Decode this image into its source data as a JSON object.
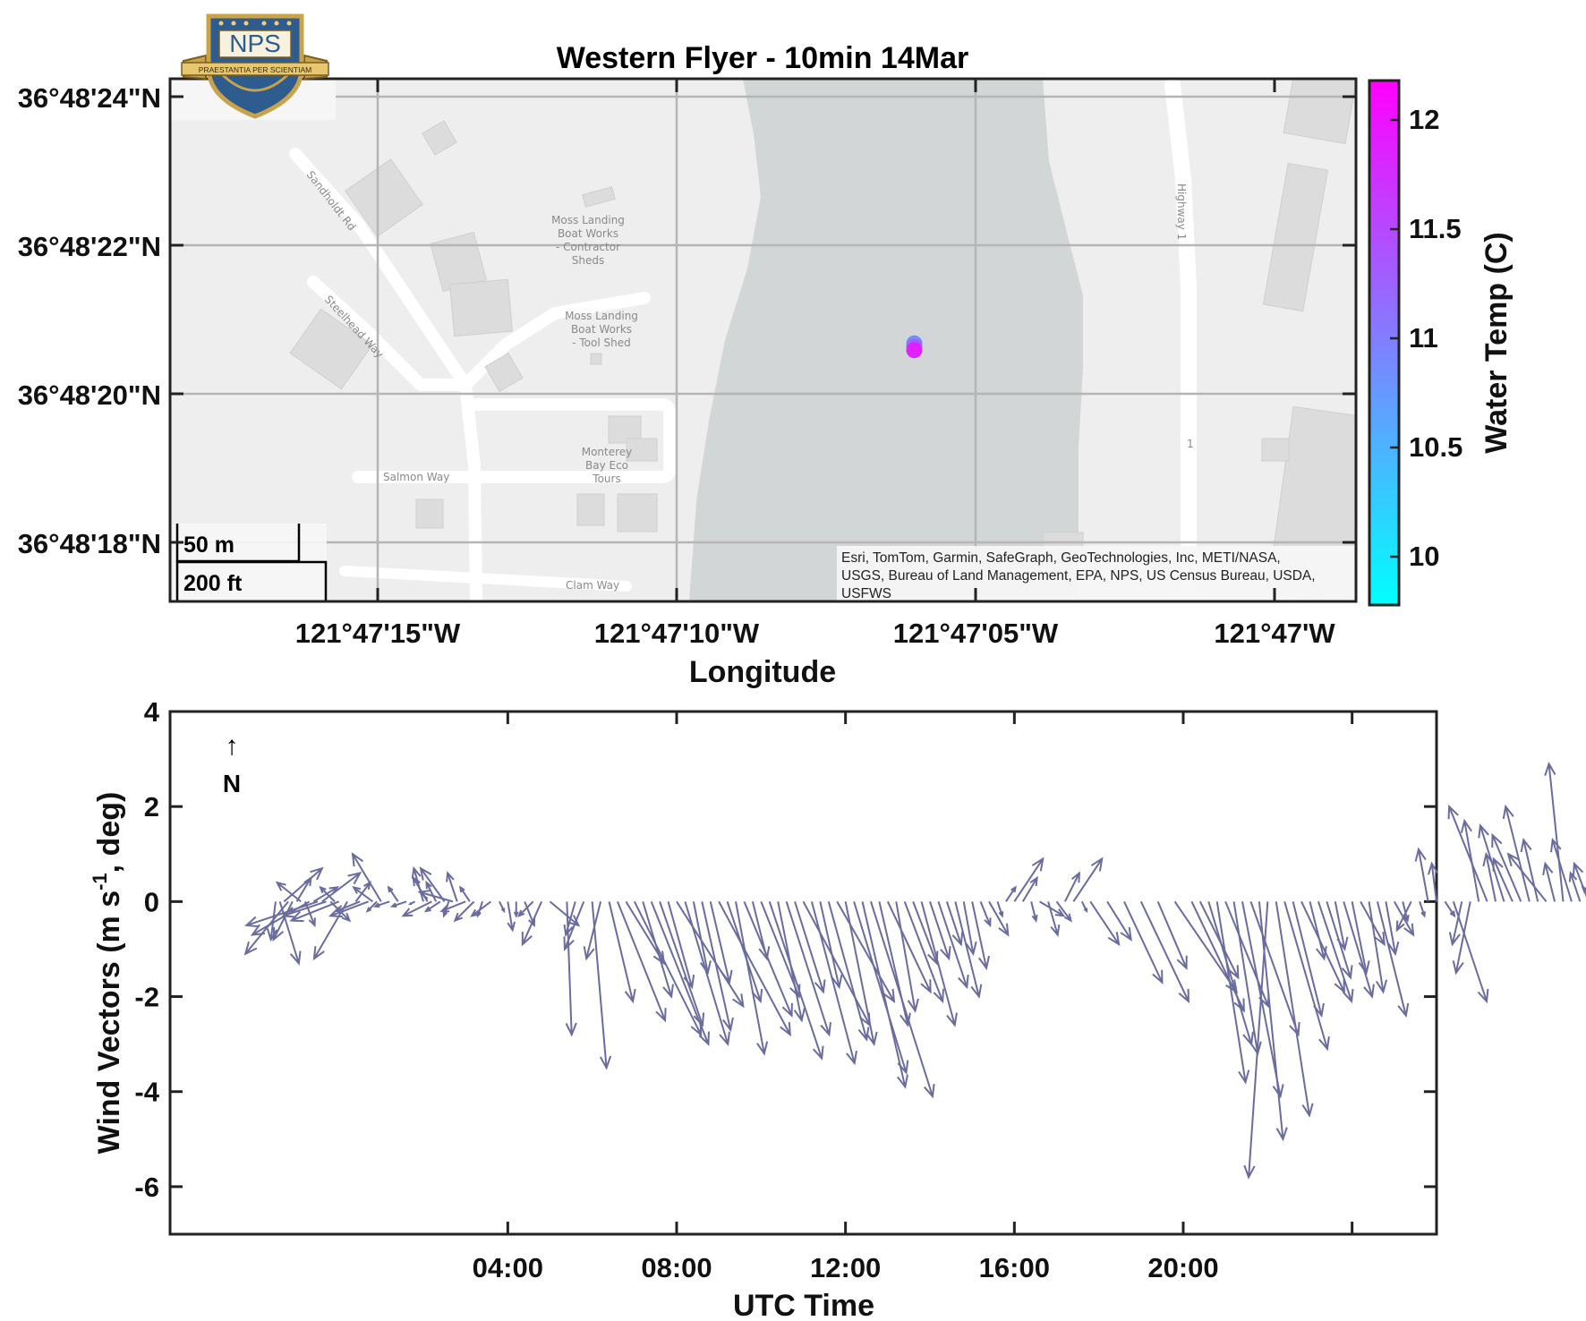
{
  "logo": {
    "text": "NPS",
    "motto": "PRAESTANTIA PER SCIENTIAM"
  },
  "map": {
    "title": "Western Flyer - 10min 14Mar",
    "xlabel": "Longitude",
    "lon_ticks": [
      "121°47'15\"W",
      "121°47'10\"W",
      "121°47'05\"W",
      "121°47'W"
    ],
    "lat_ticks": [
      "36°48'24\"N",
      "36°48'22\"N",
      "36°48'20\"N",
      "36°48'18\"N"
    ],
    "scale_bar": {
      "metric": "50 m",
      "imperial": "200 ft"
    },
    "attribution": "Esri, TomTom, Garmin, SafeGraph, GeoTechnologies, Inc, METI/NASA, USGS, Bureau of Land Management, EPA, NPS, US Census Bureau, USDA, USFWS",
    "labels": {
      "sandholdt": "Sandholdt Rd",
      "steelhead": "Steelhead Way",
      "salmon": "Salmon Way",
      "clam": "Clam Way",
      "highway": "Highway 1",
      "highway_shield": "1",
      "boatworks_1": "Moss Landing",
      "boatworks_2": "Boat Works",
      "boatworks_3": "- Contractor",
      "boatworks_4": "Sheds",
      "toolshed_1": "Moss Landing",
      "toolshed_2": "Boat Works",
      "toolshed_3": "- Tool Shed",
      "ecotours_1": "Monterey",
      "ecotours_2": "Bay Eco",
      "ecotours_3": "Tours"
    },
    "water_color": "#d3d6d6",
    "land_color": "#eeeeee"
  },
  "colorbar": {
    "label": "Water Temp (C)",
    "ticks": [
      "10",
      "10.5",
      "11",
      "11.5",
      "12"
    ],
    "range": [
      9.8,
      12.2
    ],
    "color_low": "#00ffff",
    "color_high": "#ff00ff"
  },
  "wind": {
    "xlabel": "UTC Time",
    "ylabel_main": "Wind Vectors (m s",
    "ylabel_sup": "-1",
    "ylabel_tail": ", deg)",
    "north_arrow": "↑",
    "north_label": "N",
    "x_ticks": [
      "04:00",
      "08:00",
      "12:00",
      "16:00",
      "20:00"
    ],
    "y_ticks": [
      "-6",
      "-4",
      "-2",
      "0",
      "2",
      "4"
    ],
    "arrow_color": "#6a6c9e"
  },
  "chart_data": [
    {
      "type": "scatter",
      "title": "Western Flyer - 10min 14Mar",
      "xlabel": "Longitude",
      "ylabel": "",
      "x_range_sec": [
        -20.9,
        -1.3
      ],
      "y_range_sec": [
        16.9,
        24.7
      ],
      "points": [
        {
          "lon_sec": -8.6,
          "lat_sec": 20.75,
          "temp": 10.9
        },
        {
          "lon_sec": -8.6,
          "lat_sec": 20.7,
          "temp": 11.3
        },
        {
          "lon_sec": -8.6,
          "lat_sec": 20.65,
          "temp": 11.9
        }
      ]
    },
    {
      "type": "quiver",
      "xlabel": "UTC Time",
      "ylabel": "Wind Vectors (m s-1, deg)",
      "xlim_hours": [
        0,
        30
      ],
      "ylim": [
        -7,
        4
      ],
      "grid": false,
      "vectors": [
        {
          "t": 2.5,
          "u": -0.1,
          "v": -0.8
        },
        {
          "t": 2.6,
          "u": 0.4,
          "v": -1.3
        },
        {
          "t": 2.7,
          "u": 0.8,
          "v": 0.7
        },
        {
          "t": 2.8,
          "u": -0.9,
          "v": -1.1
        },
        {
          "t": 2.9,
          "u": -0.4,
          "v": -0.8
        },
        {
          "t": 3.0,
          "u": 0.3,
          "v": 0.5
        },
        {
          "t": 3.1,
          "u": -0.5,
          "v": 0.4
        },
        {
          "t": 3.2,
          "u": 0.2,
          "v": -0.5
        },
        {
          "t": 3.3,
          "u": -1.2,
          "v": -0.7
        },
        {
          "t": 3.4,
          "u": 0.5,
          "v": 0.3
        },
        {
          "t": 3.5,
          "u": -1.5,
          "v": -0.5
        },
        {
          "t": 3.6,
          "u": 0.8,
          "v": 0.6
        },
        {
          "t": 3.7,
          "u": -0.9,
          "v": -0.3
        },
        {
          "t": 3.8,
          "u": 0.4,
          "v": -0.4
        },
        {
          "t": 3.9,
          "u": -0.3,
          "v": 0.3
        },
        {
          "t": 4.0,
          "u": -1.0,
          "v": -0.4
        },
        {
          "t": 4.2,
          "u": -0.7,
          "v": -1.2
        },
        {
          "t": 4.4,
          "u": 0.3,
          "v": 0.4
        },
        {
          "t": 4.5,
          "u": -0.5,
          "v": -0.2
        },
        {
          "t": 4.7,
          "u": -0.8,
          "v": -0.3
        },
        {
          "t": 4.8,
          "u": -0.4,
          "v": 0.3
        },
        {
          "t": 4.9,
          "u": -0.2,
          "v": -0.2
        },
        {
          "t": 5.0,
          "u": -0.6,
          "v": 1.0
        },
        {
          "t": 5.2,
          "u": -0.3,
          "v": -0.1
        },
        {
          "t": 5.4,
          "u": -0.2,
          "v": 0.3
        },
        {
          "t": 5.6,
          "u": -0.3,
          "v": -0.1
        },
        {
          "t": 5.8,
          "u": -0.1,
          "v": -0.05
        },
        {
          "t": 6.0,
          "u": -0.2,
          "v": 0.7
        },
        {
          "t": 6.1,
          "u": -0.3,
          "v": 0.5
        },
        {
          "t": 6.2,
          "u": -0.6,
          "v": -0.3
        },
        {
          "t": 6.3,
          "u": -0.2,
          "v": 0.4
        },
        {
          "t": 6.4,
          "u": -0.3,
          "v": -0.2
        },
        {
          "t": 6.5,
          "u": -0.5,
          "v": 0.7
        },
        {
          "t": 6.6,
          "u": -0.1,
          "v": -0.3
        },
        {
          "t": 6.7,
          "u": -0.7,
          "v": 0.2
        },
        {
          "t": 6.8,
          "u": -0.2,
          "v": 0.6
        },
        {
          "t": 7.0,
          "u": -0.5,
          "v": -0.2
        },
        {
          "t": 7.1,
          "u": -0.2,
          "v": 0.3
        },
        {
          "t": 7.2,
          "u": -0.4,
          "v": -0.4
        },
        {
          "t": 7.4,
          "u": -0.1,
          "v": -0.3
        },
        {
          "t": 7.6,
          "u": -0.4,
          "v": -0.3
        },
        {
          "t": 7.8,
          "u": 0.1,
          "v": -0.2
        },
        {
          "t": 8.0,
          "u": 0.1,
          "v": -0.6
        },
        {
          "t": 8.2,
          "u": 0.0,
          "v": -0.3
        },
        {
          "t": 8.4,
          "u": 0.2,
          "v": -0.5
        },
        {
          "t": 8.6,
          "u": -0.3,
          "v": -0.3
        },
        {
          "t": 8.8,
          "u": -0.4,
          "v": -0.9
        },
        {
          "t": 9.0,
          "u": 0.6,
          "v": -0.5
        },
        {
          "t": 9.4,
          "u": 0.1,
          "v": -2.8
        },
        {
          "t": 9.6,
          "u": -0.2,
          "v": -0.7
        },
        {
          "t": 9.8,
          "u": -0.4,
          "v": -1.0
        },
        {
          "t": 10.0,
          "u": 0.3,
          "v": -3.5
        },
        {
          "t": 10.2,
          "u": -0.3,
          "v": -1.2
        },
        {
          "t": 10.4,
          "u": 0.5,
          "v": -2.1
        },
        {
          "t": 10.6,
          "u": 1.0,
          "v": -2.5
        },
        {
          "t": 10.8,
          "u": 0.8,
          "v": -1.3
        },
        {
          "t": 11.0,
          "u": 1.4,
          "v": -2.8
        },
        {
          "t": 11.2,
          "u": 0.6,
          "v": -2.0
        },
        {
          "t": 11.4,
          "u": 1.2,
          "v": -3.0
        },
        {
          "t": 11.6,
          "u": 0.9,
          "v": -2.6
        },
        {
          "t": 11.8,
          "u": 0.5,
          "v": -1.8
        },
        {
          "t": 12.0,
          "u": 1.4,
          "v": -2.2
        },
        {
          "t": 12.2,
          "u": 0.9,
          "v": -3.0
        },
        {
          "t": 12.4,
          "u": 0.3,
          "v": -1.5
        },
        {
          "t": 12.6,
          "u": 0.6,
          "v": -2.7
        },
        {
          "t": 12.8,
          "u": 0.4,
          "v": -1.7
        },
        {
          "t": 13.0,
          "u": 1.5,
          "v": -2.8
        },
        {
          "t": 13.2,
          "u": 0.7,
          "v": -2.1
        },
        {
          "t": 13.4,
          "u": 0.6,
          "v": -3.2
        },
        {
          "t": 13.6,
          "u": 1.0,
          "v": -2.4
        },
        {
          "t": 13.8,
          "u": 0.3,
          "v": -1.2
        },
        {
          "t": 14.0,
          "u": 0.8,
          "v": -2.0
        },
        {
          "t": 14.2,
          "u": 1.1,
          "v": -3.3
        },
        {
          "t": 14.4,
          "u": 0.5,
          "v": -2.5
        },
        {
          "t": 14.6,
          "u": 0.9,
          "v": -2.8
        },
        {
          "t": 14.8,
          "u": 0.6,
          "v": -1.9
        },
        {
          "t": 15.0,
          "u": 1.4,
          "v": -2.6
        },
        {
          "t": 15.2,
          "u": 0.9,
          "v": -3.4
        },
        {
          "t": 15.4,
          "u": 0.4,
          "v": -1.8
        },
        {
          "t": 15.6,
          "u": 0.8,
          "v": -2.9
        },
        {
          "t": 15.8,
          "u": 1.2,
          "v": -2.1
        },
        {
          "t": 16.0,
          "u": 0.6,
          "v": -3.0
        },
        {
          "t": 16.2,
          "u": 1.1,
          "v": -3.6
        },
        {
          "t": 16.4,
          "u": 0.9,
          "v": -3.9
        },
        {
          "t": 16.6,
          "u": 1.3,
          "v": -4.1
        },
        {
          "t": 16.8,
          "u": 0.6,
          "v": -2.6
        },
        {
          "t": 17.0,
          "u": 0.9,
          "v": -1.9
        },
        {
          "t": 17.2,
          "u": 0.4,
          "v": -2.3
        },
        {
          "t": 17.4,
          "u": 0.8,
          "v": -2.1
        },
        {
          "t": 17.6,
          "u": 0.5,
          "v": -1.3
        },
        {
          "t": 17.8,
          "u": 0.7,
          "v": -2.6
        },
        {
          "t": 18.0,
          "u": 0.4,
          "v": -1.2
        },
        {
          "t": 18.2,
          "u": 0.6,
          "v": -1.8
        },
        {
          "t": 18.4,
          "u": 0.3,
          "v": -0.9
        },
        {
          "t": 18.6,
          "u": 0.5,
          "v": -2.0
        },
        {
          "t": 18.8,
          "u": 0.2,
          "v": -1.1
        },
        {
          "t": 19.0,
          "u": 0.3,
          "v": -1.4
        },
        {
          "t": 19.2,
          "u": 0.2,
          "v": -0.5
        },
        {
          "t": 19.4,
          "u": 0.4,
          "v": -0.7
        },
        {
          "t": 19.6,
          "u": 0.1,
          "v": -0.3
        },
        {
          "t": 19.8,
          "u": 0.2,
          "v": 0.3
        },
        {
          "t": 20.0,
          "u": 0.6,
          "v": 0.9
        },
        {
          "t": 20.2,
          "u": 0.3,
          "v": 0.5
        },
        {
          "t": 20.4,
          "u": 0.1,
          "v": -0.4
        },
        {
          "t": 20.6,
          "u": 0.5,
          "v": -0.3
        },
        {
          "t": 20.8,
          "u": 0.2,
          "v": -0.7
        },
        {
          "t": 21.0,
          "u": 0.3,
          "v": -0.4
        },
        {
          "t": 21.2,
          "u": 0.3,
          "v": 0.6
        },
        {
          "t": 21.4,
          "u": 0.6,
          "v": 0.9
        },
        {
          "t": 21.6,
          "u": 0.1,
          "v": -0.2
        },
        {
          "t": 21.8,
          "u": 0.6,
          "v": -0.9
        },
        {
          "t": 22.2,
          "u": 0.5,
          "v": -0.8
        },
        {
          "t": 22.6,
          "u": 0.8,
          "v": -1.7
        },
        {
          "t": 23.0,
          "u": 1.0,
          "v": -2.1
        },
        {
          "t": 23.4,
          "u": 0.6,
          "v": -1.4
        },
        {
          "t": 23.8,
          "u": 1.3,
          "v": -1.9
        },
        {
          "t": 24.2,
          "u": 1.1,
          "v": -2.3
        },
        {
          "t": 24.4,
          "u": 0.8,
          "v": -1.6
        },
        {
          "t": 24.6,
          "u": 0.9,
          "v": -3.0
        },
        {
          "t": 24.8,
          "u": 0.6,
          "v": -3.8
        },
        {
          "t": 25.0,
          "u": 0.9,
          "v": -2.2
        },
        {
          "t": 25.2,
          "u": 0.5,
          "v": -3.2
        },
        {
          "t": 25.4,
          "u": 0.8,
          "v": -4.1
        },
        {
          "t": 25.6,
          "u": 1.0,
          "v": -2.8
        },
        {
          "t": 25.8,
          "u": 0.5,
          "v": -5.0
        },
        {
          "t": 26.0,
          "u": -0.4,
          "v": -5.8
        },
        {
          "t": 26.2,
          "u": 0.7,
          "v": -4.5
        },
        {
          "t": 26.4,
          "u": 0.9,
          "v": -3.1
        },
        {
          "t": 26.6,
          "u": 0.6,
          "v": -2.4
        },
        {
          "t": 26.8,
          "u": 0.9,
          "v": -1.9
        },
        {
          "t": 27.0,
          "u": 0.3,
          "v": -1.2
        },
        {
          "t": 27.2,
          "u": 0.7,
          "v": -2.1
        },
        {
          "t": 27.4,
          "u": 0.5,
          "v": -1.6
        },
        {
          "t": 27.6,
          "u": 0.2,
          "v": -1.0
        },
        {
          "t": 27.8,
          "u": 0.6,
          "v": -2.0
        },
        {
          "t": 28.0,
          "u": 0.3,
          "v": -1.5
        },
        {
          "t": 28.2,
          "u": 0.5,
          "v": -0.9
        },
        {
          "t": 28.4,
          "u": 0.3,
          "v": -1.9
        },
        {
          "t": 28.6,
          "u": 0.6,
          "v": -2.4
        },
        {
          "t": 28.8,
          "u": 0.2,
          "v": -1.1
        },
        {
          "t": 29.0,
          "u": 0.4,
          "v": -0.7
        },
        {
          "t": 29.2,
          "u": 0.1,
          "v": -0.4
        },
        {
          "t": 29.4,
          "u": -0.3,
          "v": -0.6
        },
        {
          "t": 29.6,
          "u": 0.1,
          "v": -0.3
        },
        {
          "t": 29.8,
          "u": -0.2,
          "v": 1.1
        },
        {
          "t": 30.0,
          "u": -0.1,
          "v": 0.8
        },
        {
          "t": 30.2,
          "u": 0.2,
          "v": -0.3
        },
        {
          "t": 30.4,
          "u": 0.7,
          "v": -2.1
        },
        {
          "t": 30.6,
          "u": -0.2,
          "v": -0.9
        },
        {
          "t": 30.8,
          "u": -0.3,
          "v": -1.5
        },
        {
          "t": 31.0,
          "u": -0.3,
          "v": 1.7
        },
        {
          "t": 31.2,
          "u": -0.8,
          "v": 2.0
        },
        {
          "t": 31.4,
          "u": -0.2,
          "v": 1.0
        },
        {
          "t": 31.6,
          "u": -0.5,
          "v": 1.6
        },
        {
          "t": 31.8,
          "u": -0.4,
          "v": 0.9
        },
        {
          "t": 32.0,
          "u": -0.6,
          "v": 1.4
        },
        {
          "t": 32.2,
          "u": -0.5,
          "v": 2.0
        },
        {
          "t": 32.4,
          "u": -0.3,
          "v": 1.3
        },
        {
          "t": 32.6,
          "u": -0.8,
          "v": 1.0
        },
        {
          "t": 32.8,
          "u": -0.2,
          "v": 0.8
        },
        {
          "t": 33.0,
          "u": -0.3,
          "v": 2.9
        },
        {
          "t": 33.2,
          "u": -0.4,
          "v": 1.3
        },
        {
          "t": 33.4,
          "u": -0.2,
          "v": 0.6
        },
        {
          "t": 33.6,
          "u": -0.3,
          "v": 0.8
        },
        {
          "t": 33.8,
          "u": -0.3,
          "v": 0.3
        },
        {
          "t": 34.0,
          "u": -0.2,
          "v": 0.2
        },
        {
          "t": 34.2,
          "u": 0.1,
          "v": 0.1
        },
        {
          "t": 34.4,
          "u": 0.0,
          "v": 0.0
        }
      ]
    }
  ]
}
